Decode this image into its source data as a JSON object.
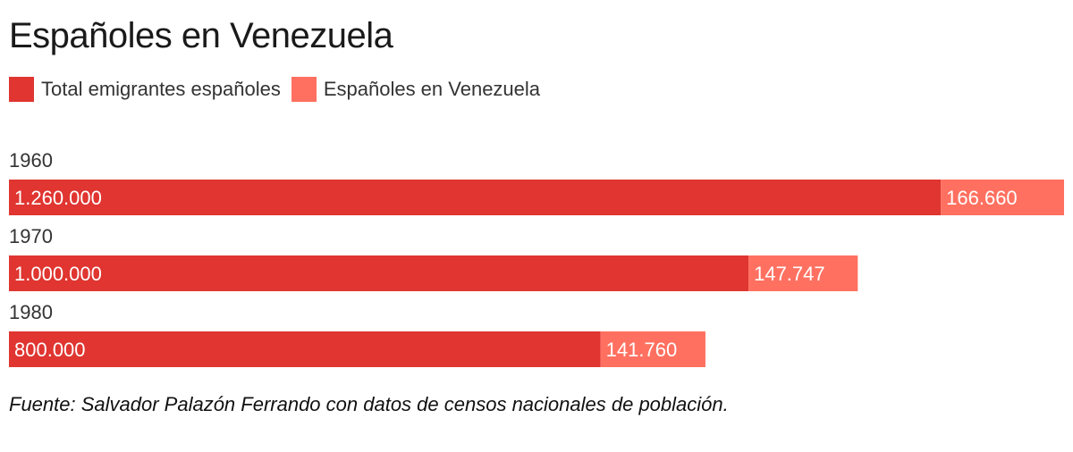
{
  "chart_data": {
    "type": "bar",
    "orientation": "horizontal",
    "stacked": true,
    "title": "Españoles en Venezuela",
    "categories": [
      "1960",
      "1970",
      "1980"
    ],
    "series": [
      {
        "name": "Total emigrantes españoles",
        "values": [
          1260000,
          1000000,
          800000
        ],
        "labels": [
          "1.260.000",
          "1.000.000",
          "800.000"
        ],
        "color": "#e03530"
      },
      {
        "name": "Españoles en Venezuela",
        "values": [
          166660,
          147747,
          141760
        ],
        "labels": [
          "166.660",
          "147.747",
          "141.760"
        ],
        "color": "#ff7060"
      }
    ],
    "xlim": [
      0,
      1426660
    ],
    "grid": false,
    "legend_position": "top-left",
    "source": "Fuente: Salvador Palazón Ferrando con datos de censos nacionales de población."
  }
}
